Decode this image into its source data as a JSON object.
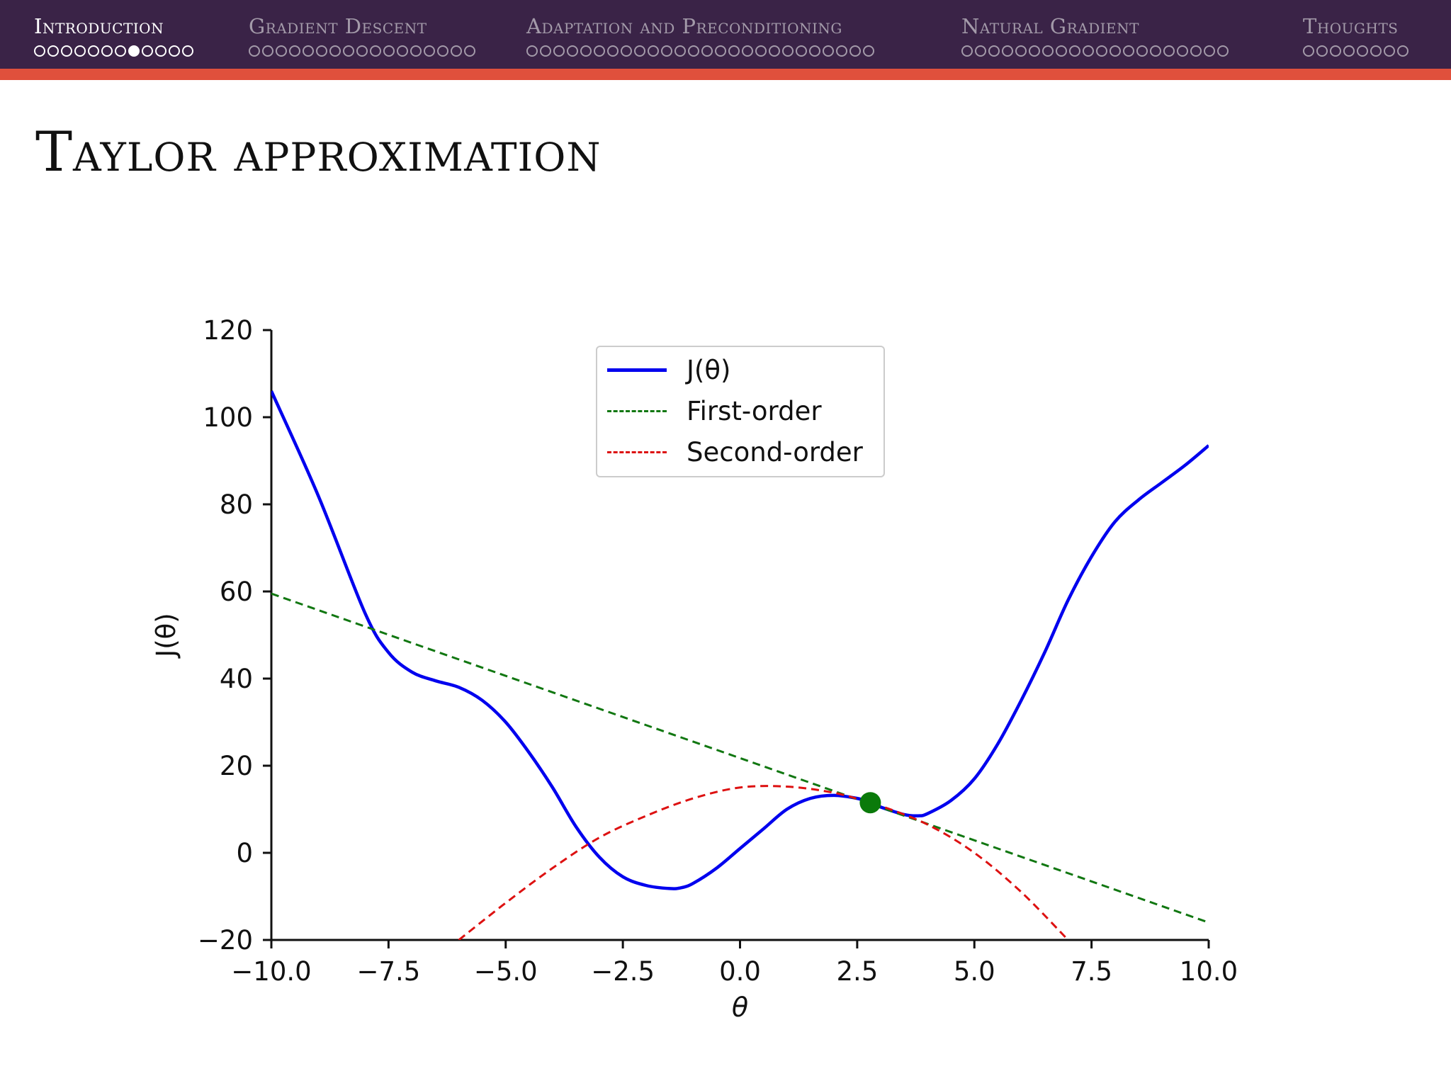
{
  "nav": {
    "sections": [
      {
        "title": "Introduction",
        "dots": 12,
        "current_dot": 7,
        "active": true
      },
      {
        "title": "Gradient Descent",
        "dots": 17,
        "current_dot": -1,
        "active": false
      },
      {
        "title": "Adaptation and Preconditioning",
        "dots": 26,
        "current_dot": -1,
        "active": false
      },
      {
        "title": "Natural Gradient",
        "dots": 20,
        "current_dot": -1,
        "active": false
      },
      {
        "title": "Thoughts",
        "dots": 8,
        "current_dot": -1,
        "active": false
      }
    ]
  },
  "slide": {
    "title": "Taylor approximation"
  },
  "colors": {
    "nav_bg": "#3a2347",
    "accent": "#e0503c",
    "j": "#0000ee",
    "first": "#117711",
    "second": "#dd1111",
    "point": "#0a7a0a"
  },
  "chart_data": {
    "type": "line",
    "title": "",
    "xlabel": "θ",
    "ylabel": "J(θ)",
    "xlim": [
      -10,
      10
    ],
    "ylim": [
      -20,
      120
    ],
    "xticks": [
      "−10.0",
      "−7.5",
      "−5.0",
      "−2.5",
      "0.0",
      "2.5",
      "5.0",
      "7.5",
      "10.0"
    ],
    "yticks": [
      "−20",
      "0",
      "20",
      "40",
      "60",
      "80",
      "100",
      "120"
    ],
    "grid": false,
    "legend_position": "upper-center",
    "series": [
      {
        "name": "J(θ)",
        "style": "solid",
        "x": [
          -10,
          -9,
          -8,
          -7.5,
          -7,
          -6.5,
          -6,
          -5.5,
          -5,
          -4.5,
          -4,
          -3.5,
          -3,
          -2.5,
          -2,
          -1.5,
          -1.25,
          -1,
          -0.5,
          0,
          0.5,
          1,
          1.5,
          2,
          2.5,
          2.78,
          3,
          3.5,
          3.8,
          4,
          4.5,
          5,
          5.5,
          6,
          6.5,
          7,
          7.5,
          8,
          8.5,
          9,
          9.5,
          10
        ],
        "y": [
          106,
          82,
          55,
          46,
          41.5,
          39.5,
          38,
          35,
          30,
          23,
          15,
          6,
          -1,
          -5.5,
          -7.5,
          -8.2,
          -8,
          -7,
          -3.5,
          1,
          5.5,
          10,
          12.5,
          13.2,
          12.5,
          11.5,
          10.5,
          8.8,
          8.5,
          9,
          12,
          17,
          25,
          35,
          46,
          58,
          68,
          76,
          81,
          85,
          89,
          93.5
        ]
      },
      {
        "name": "First-order",
        "style": "dashed",
        "x": [
          -10,
          10
        ],
        "y": [
          59.5,
          -16
        ]
      },
      {
        "name": "Second-order",
        "style": "dashed",
        "x": [
          -6,
          -5,
          -4,
          -3,
          -2,
          -1,
          0,
          1,
          2,
          2.78,
          3,
          4,
          5,
          6,
          7
        ],
        "y": [
          -20,
          -11.5,
          -3.5,
          3.5,
          8.5,
          12.5,
          15,
          15.2,
          13.8,
          11.5,
          10.8,
          6.5,
          0,
          -9,
          -20
        ]
      }
    ],
    "point": {
      "x": 2.78,
      "y": 11.5
    }
  }
}
